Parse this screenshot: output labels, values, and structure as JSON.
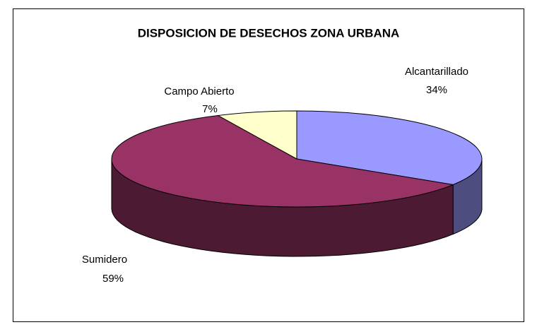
{
  "chart_data": {
    "type": "pie",
    "title": "DISPOSICION DE DESECHOS ZONA URBANA",
    "categories": [
      "Alcantarillado",
      "Sumidero",
      "Campo Abierto"
    ],
    "values": [
      34,
      59,
      7
    ],
    "value_labels": [
      "34%",
      "59%",
      "7%"
    ],
    "colors": [
      "#9999ff",
      "#993366",
      "#ffffcc"
    ]
  }
}
